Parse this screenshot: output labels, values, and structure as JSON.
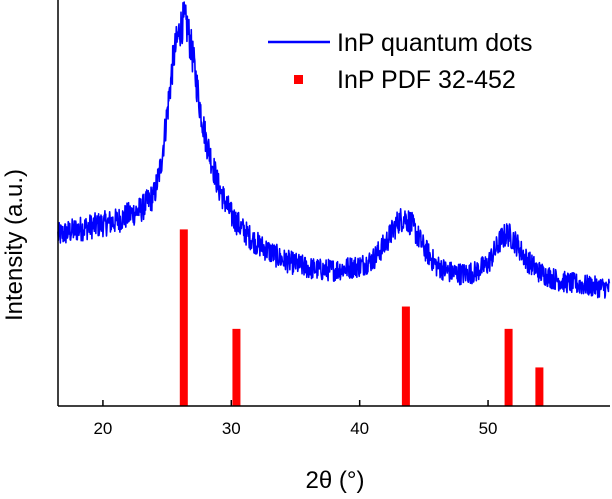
{
  "chart_data": {
    "type": "line",
    "title": "",
    "xlabel": "2θ (°)",
    "ylabel": "Intensity (a.u.)",
    "xlim": [
      16.5,
      59.5
    ],
    "ylim": [
      0,
      100
    ],
    "x_ticks": [
      20,
      30,
      40,
      50
    ],
    "x_tick_labels": [
      "20",
      "30",
      "40",
      "50"
    ],
    "legend_position": "top-right",
    "colors": {
      "line": "#0000ff",
      "bars": "#ff0000",
      "axes": "#000000"
    },
    "series": [
      {
        "name": "InP quantum dots",
        "type": "line",
        "color": "#0000ff",
        "x": [
          16.5,
          18,
          19.5,
          21,
          22,
          23,
          24,
          24.5,
          25,
          25.5,
          26,
          26.3,
          26.6,
          27,
          27.5,
          28,
          29,
          30,
          31,
          32,
          33,
          34,
          35,
          36,
          37,
          38,
          39,
          40,
          41,
          42,
          43,
          43.5,
          44,
          44.5,
          45,
          46,
          47,
          48,
          49,
          50,
          51,
          51.5,
          52,
          53,
          54,
          55,
          56,
          57,
          58,
          59.5
        ],
        "y": [
          42.0,
          43.5,
          44.5,
          45.5,
          47.0,
          48.5,
          52.0,
          59.0,
          72.0,
          86.0,
          93.0,
          95.0,
          93.0,
          86.0,
          75.0,
          66.0,
          54.0,
          47.0,
          43.0,
          40.0,
          38.0,
          36.0,
          35.0,
          34.0,
          33.5,
          33.5,
          34.0,
          34.5,
          36.0,
          40.0,
          45.5,
          46.5,
          45.0,
          42.0,
          39.0,
          34.5,
          33.0,
          32.5,
          33.0,
          35.0,
          41.0,
          42.5,
          41.0,
          36.0,
          33.0,
          31.5,
          30.5,
          30.0,
          29.5,
          29.0
        ]
      },
      {
        "name": "InP PDF 32-452",
        "type": "bar",
        "color": "#ff0000",
        "x": [
          26.3,
          30.4,
          43.6,
          51.6,
          54.0
        ],
        "y": [
          43.5,
          19.0,
          24.5,
          19.0,
          9.5
        ]
      }
    ]
  }
}
